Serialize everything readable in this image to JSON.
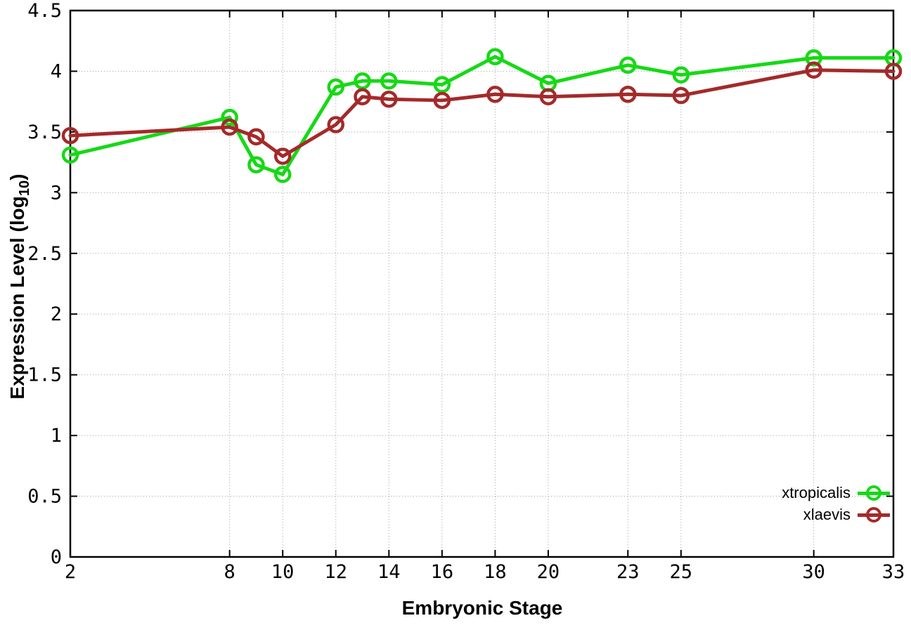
{
  "chart_data": {
    "type": "line",
    "title": "",
    "xlabel": "Embryonic Stage",
    "ylabel": "Expression Level (log10)",
    "ylabel_parts": {
      "prefix": "Expression Level (log",
      "sub": "10",
      "suffix": ")"
    },
    "xlim": [
      2,
      33
    ],
    "ylim": [
      0,
      4.5
    ],
    "grid": true,
    "legend_position": "inside-bottom-right",
    "axis_color": "#000000",
    "grid_color": "#a0a0a0",
    "x_ticks": [
      {
        "value": 2,
        "label": "2"
      },
      {
        "value": 8,
        "label": "8"
      },
      {
        "value": 10,
        "label": "10"
      },
      {
        "value": 12,
        "label": "12"
      },
      {
        "value": 14,
        "label": "14"
      },
      {
        "value": 16,
        "label": "16"
      },
      {
        "value": 18,
        "label": "18"
      },
      {
        "value": 20,
        "label": "20"
      },
      {
        "value": 23,
        "label": "23"
      },
      {
        "value": 25,
        "label": "25"
      },
      {
        "value": 30,
        "label": "30"
      },
      {
        "value": 33,
        "label": "33"
      }
    ],
    "y_ticks": [
      {
        "value": 0,
        "label": "0"
      },
      {
        "value": 0.5,
        "label": "0.5"
      },
      {
        "value": 1,
        "label": "1"
      },
      {
        "value": 1.5,
        "label": "1.5"
      },
      {
        "value": 2,
        "label": "2"
      },
      {
        "value": 2.5,
        "label": "2.5"
      },
      {
        "value": 3,
        "label": "3"
      },
      {
        "value": 3.5,
        "label": "3.5"
      },
      {
        "value": 4,
        "label": "4"
      },
      {
        "value": 4.5,
        "label": "4.5"
      }
    ],
    "x": [
      2,
      8,
      9,
      10,
      12,
      13,
      14,
      16,
      18,
      20,
      23,
      25,
      30,
      33
    ],
    "series": [
      {
        "name": "xtropicalis",
        "color": "#16d916",
        "marker": "open-circle",
        "values": [
          3.31,
          3.62,
          3.23,
          3.15,
          3.87,
          3.92,
          3.92,
          3.89,
          4.12,
          3.9,
          4.05,
          3.97,
          4.11,
          4.11
        ]
      },
      {
        "name": "xlaevis",
        "color": "#a42a2a",
        "marker": "open-circle",
        "values": [
          3.47,
          3.54,
          3.46,
          3.3,
          3.56,
          3.79,
          3.77,
          3.76,
          3.81,
          3.79,
          3.81,
          3.8,
          4.01,
          4.0
        ]
      }
    ]
  }
}
